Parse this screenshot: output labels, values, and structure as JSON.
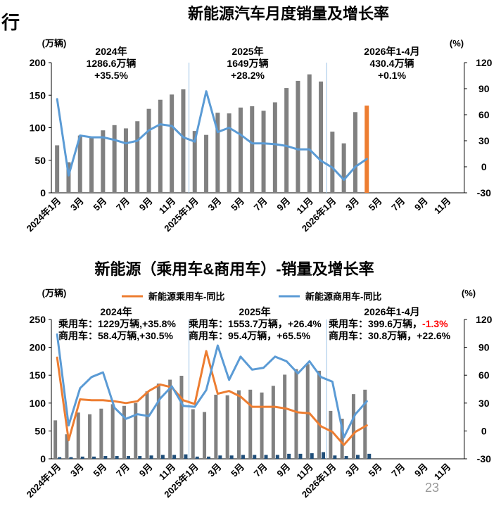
{
  "page": {
    "corner_text": "行",
    "page_number": "23"
  },
  "colors": {
    "bar": "#808080",
    "bar_highlight": "#ed7d31",
    "line_blue": "#5b9bd5",
    "line_orange": "#ed7d31",
    "bar_commercial": "#1f4e79",
    "divider": "#9dc3e6",
    "negative_text": "#ff0000"
  },
  "chart_data": [
    {
      "type": "bar",
      "title": "新能源汽车月度销量及增长率",
      "ylabel": "(万辆)",
      "y2label": "(%)",
      "ylim": [
        0,
        200
      ],
      "y2lim": [
        -30,
        120
      ],
      "yticks": [
        "0",
        "50",
        "100",
        "150",
        "200"
      ],
      "y2ticks": [
        "-30",
        "0",
        "30",
        "60",
        "90",
        "120"
      ],
      "x_labels": [
        "2024年1月",
        "3月",
        "5月",
        "7月",
        "9月",
        "11月",
        "2025年1月",
        "3月",
        "5月",
        "7月",
        "9月",
        "11月",
        "2026年1月",
        "3月",
        "5月",
        "7月",
        "9月",
        "11月"
      ],
      "series": [
        {
          "type": "bar",
          "axis": "left",
          "values": [
            73,
            47,
            88,
            85,
            96,
            104,
            99,
            110,
            129,
            143,
            151,
            159,
            95,
            89,
            123,
            122,
            131,
            133,
            126,
            139,
            161,
            172,
            182,
            171,
            94,
            76,
            124,
            134
          ]
        },
        {
          "type": "line",
          "axis": "right",
          "values": [
            78,
            -10,
            36,
            34,
            34,
            31,
            27,
            30,
            42,
            49,
            47,
            34,
            29,
            87,
            40,
            45,
            37,
            27,
            27,
            26,
            24,
            20,
            20,
            7,
            -1,
            -15,
            0,
            9
          ]
        }
      ],
      "annotations": [
        {
          "lines": [
            "2024年",
            "1286.6万辆",
            "+35.5%"
          ]
        },
        {
          "lines": [
            "2025年",
            "1649万辆",
            "+28.2%"
          ]
        },
        {
          "lines": [
            "2026年1-4月",
            "430.4万辆",
            "+0.1%"
          ]
        }
      ]
    },
    {
      "type": "bar",
      "title": "新能源（乘用车&商用车）-销量及增长率",
      "ylabel": "(万辆)",
      "y2label": "(%)",
      "ylim": [
        0,
        250
      ],
      "y2lim": [
        -30,
        120
      ],
      "yticks": [
        "0",
        "50",
        "100",
        "150",
        "200",
        "250"
      ],
      "y2ticks": [
        "-30",
        "0",
        "30",
        "60",
        "90",
        "120"
      ],
      "x_labels": [
        "2024年1月",
        "3月",
        "5月",
        "7月",
        "9月",
        "11月",
        "2025年1月",
        "3月",
        "5月",
        "7月",
        "9月",
        "11月",
        "2026年1月",
        "3月",
        "5月",
        "7月",
        "9月",
        "11月"
      ],
      "legend": [
        "新能源乘用车-同比",
        "新能源商用车-同比"
      ],
      "series": [
        {
          "type": "bar",
          "axis": "left",
          "group": "passenger",
          "values": [
            69,
            44,
            83,
            80,
            90,
            98,
            95,
            100,
            121,
            135,
            142,
            149,
            89,
            84,
            115,
            114,
            123,
            124,
            119,
            131,
            151,
            161,
            170,
            158,
            86,
            72,
            116,
            124
          ]
        },
        {
          "type": "bar",
          "axis": "left",
          "group": "commercial",
          "values": [
            3,
            3,
            4,
            4,
            5,
            5,
            5,
            5,
            6,
            7,
            7,
            8,
            4,
            4,
            6,
            6,
            7,
            7,
            7,
            7,
            9,
            9,
            10,
            12,
            6,
            5,
            7,
            9
          ]
        },
        {
          "type": "line",
          "axis": "right",
          "name": "新能源乘用车-同比",
          "values": [
            79,
            -10,
            34,
            33,
            33,
            32,
            30,
            32,
            43,
            50,
            47,
            33,
            29,
            86,
            40,
            43,
            37,
            26,
            26,
            26,
            24,
            20,
            19,
            5,
            -1,
            -15,
            -1,
            6
          ]
        },
        {
          "type": "line",
          "axis": "right",
          "name": "新能源商用车-同比",
          "values": [
            104,
            6,
            46,
            58,
            63,
            25,
            13,
            18,
            16,
            35,
            48,
            27,
            26,
            44,
            92,
            55,
            80,
            66,
            68,
            80,
            75,
            62,
            75,
            58,
            53,
            -7,
            18,
            32
          ]
        }
      ],
      "annotations": [
        {
          "header": "2024年",
          "rows": [
            {
              "label": "乘用车：",
              "value": "1229万辆,+35.8%"
            },
            {
              "label": "商用车：",
              "value": "58.4万辆,+30.5%"
            }
          ]
        },
        {
          "header": "2025年",
          "rows": [
            {
              "label": "乘用车：",
              "value": "1553.7万辆，+26.4%"
            },
            {
              "label": "商用车：",
              "value": "95.4万辆，+65.5%"
            }
          ]
        },
        {
          "header": "2026年1-4月",
          "rows": [
            {
              "label": "乘用车：",
              "value": "399.6万辆，",
              "extra": "-1.3%"
            },
            {
              "label": "商用车：",
              "value": "30.8万辆，+22.6%"
            }
          ]
        }
      ]
    }
  ]
}
